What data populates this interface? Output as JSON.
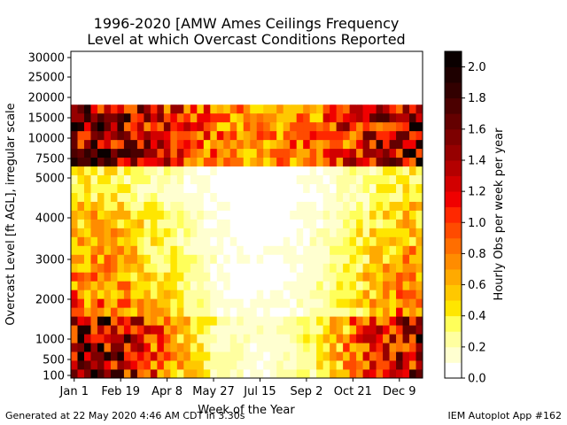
{
  "chart_data": {
    "type": "heatmap",
    "title_line1": "1996-2020 [AMW Ames Ceilings Frequency",
    "title_line2": "Level at which Overcast Conditions Reported",
    "xlabel": "Week of the Year",
    "ylabel": "Overcast Level [ft AGL], irregular scale",
    "x_ticks": [
      "Jan 1",
      "Feb 19",
      "Apr 8",
      "May 27",
      "Jul 15",
      "Sep 2",
      "Oct 21",
      "Dec 9"
    ],
    "x_tick_weeks": [
      0,
      7,
      14,
      21,
      28,
      35,
      42,
      49
    ],
    "y_ticks": [
      "100",
      "500",
      "1000",
      "2000",
      "3000",
      "4000",
      "5000",
      "7500",
      "10000",
      "15000",
      "20000",
      "25000",
      "30000"
    ],
    "weeks": 53,
    "level_rows": 37,
    "colorbar": {
      "label": "Hourly Obs per week per year",
      "min": 0.0,
      "max": 2.1,
      "ticks": [
        "0.0",
        "0.2",
        "0.4",
        "0.6",
        "0.8",
        "1.0",
        "1.2",
        "1.4",
        "1.6",
        "1.8",
        "2.0"
      ],
      "colors": [
        "#ffffff",
        "#ffffd0",
        "#ffffa0",
        "#ffff5a",
        "#ffe600",
        "#ffc800",
        "#ffaa00",
        "#ff8c00",
        "#ff6e00",
        "#ff4b00",
        "#ff2800",
        "#f00000",
        "#d20000",
        "#b40000",
        "#960000",
        "#7d0000",
        "#640000",
        "#4b0000",
        "#320000",
        "#1e0000",
        "#0a0000"
      ]
    },
    "profile": {
      "low_levels_0_to_1000": {
        "cold_season": 1.5,
        "warm_season": 0.15
      },
      "mid_levels_1000_to_4000": {
        "cold_season": 0.9,
        "warm_season": 0.1
      },
      "levels_4000_to_5000": {
        "cold_season": 0.4,
        "warm_season": 0.05
      },
      "high_levels_5000_to_12000": {
        "cold_season": 1.5,
        "warm_season": 0.75
      },
      "above_12000": 0.0
    }
  },
  "footer": {
    "left": "Generated at 22 May 2020 4:46 AM CDT in 3.30s",
    "right": "IEM Autoplot App #162"
  }
}
